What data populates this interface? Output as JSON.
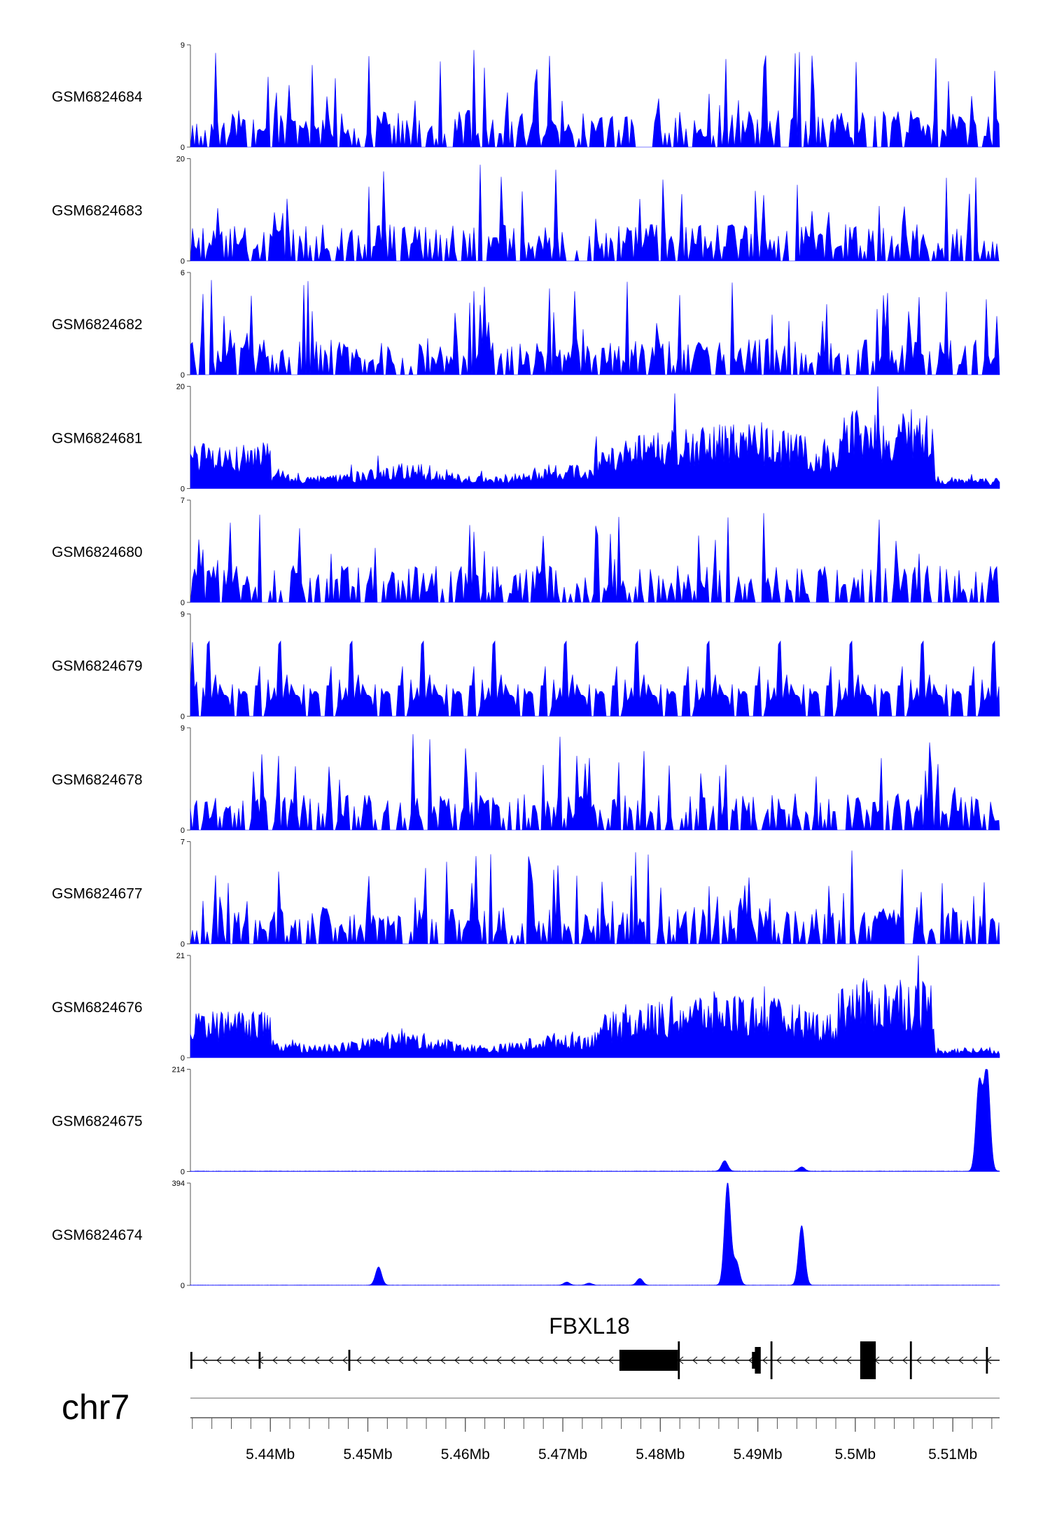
{
  "chart_data": {
    "type": "area",
    "title": "",
    "colors": {
      "signal": "#0000ff",
      "axis": "#555555",
      "gene": "#000000"
    },
    "x_range_mb": [
      5.4318,
      5.5148
    ],
    "chromosome": "chr7",
    "gene": {
      "name": "FBXL18",
      "strand": "-",
      "start_mb": 5.4318,
      "end_mb": 5.5152
    },
    "tracks": [
      {
        "name": "GSM6824684",
        "ymin": "0",
        "ymax": "9"
      },
      {
        "name": "GSM6824683",
        "ymin": "0",
        "ymax": "20"
      },
      {
        "name": "GSM6824682",
        "ymin": "0",
        "ymax": "6"
      },
      {
        "name": "GSM6824681",
        "ymin": "0",
        "ymax": "20"
      },
      {
        "name": "GSM6824680",
        "ymin": "0",
        "ymax": "7"
      },
      {
        "name": "GSM6824679",
        "ymin": "0",
        "ymax": "9"
      },
      {
        "name": "GSM6824678",
        "ymin": "0",
        "ymax": "9"
      },
      {
        "name": "GSM6824677",
        "ymin": "0",
        "ymax": "7"
      },
      {
        "name": "GSM6824676",
        "ymin": "0",
        "ymax": "21"
      },
      {
        "name": "GSM6824675",
        "ymin": "0",
        "ymax": "214"
      },
      {
        "name": "GSM6824674",
        "ymin": "0",
        "ymax": "394"
      }
    ],
    "peaks": {
      "GSM6824675": [
        {
          "pos": 5.5127,
          "value": 185
        },
        {
          "pos": 5.5135,
          "value": 214
        },
        {
          "pos": 5.4866,
          "value": 22
        },
        {
          "pos": 5.4945,
          "value": 9
        }
      ],
      "GSM6824674": [
        {
          "pos": 5.4511,
          "value": 70
        },
        {
          "pos": 5.4869,
          "value": 394
        },
        {
          "pos": 5.4878,
          "value": 90
        },
        {
          "pos": 5.4945,
          "value": 230
        },
        {
          "pos": 5.4779,
          "value": 26
        },
        {
          "pos": 5.4704,
          "value": 12
        },
        {
          "pos": 5.4727,
          "value": 8
        }
      ]
    },
    "x_ticks": [
      "5.44Mb",
      "5.45Mb",
      "5.46Mb",
      "5.47Mb",
      "5.48Mb",
      "5.49Mb",
      "5.5Mb",
      "5.51Mb"
    ],
    "x_tick_values": [
      5.44,
      5.45,
      5.46,
      5.47,
      5.48,
      5.49,
      5.5,
      5.51
    ]
  }
}
